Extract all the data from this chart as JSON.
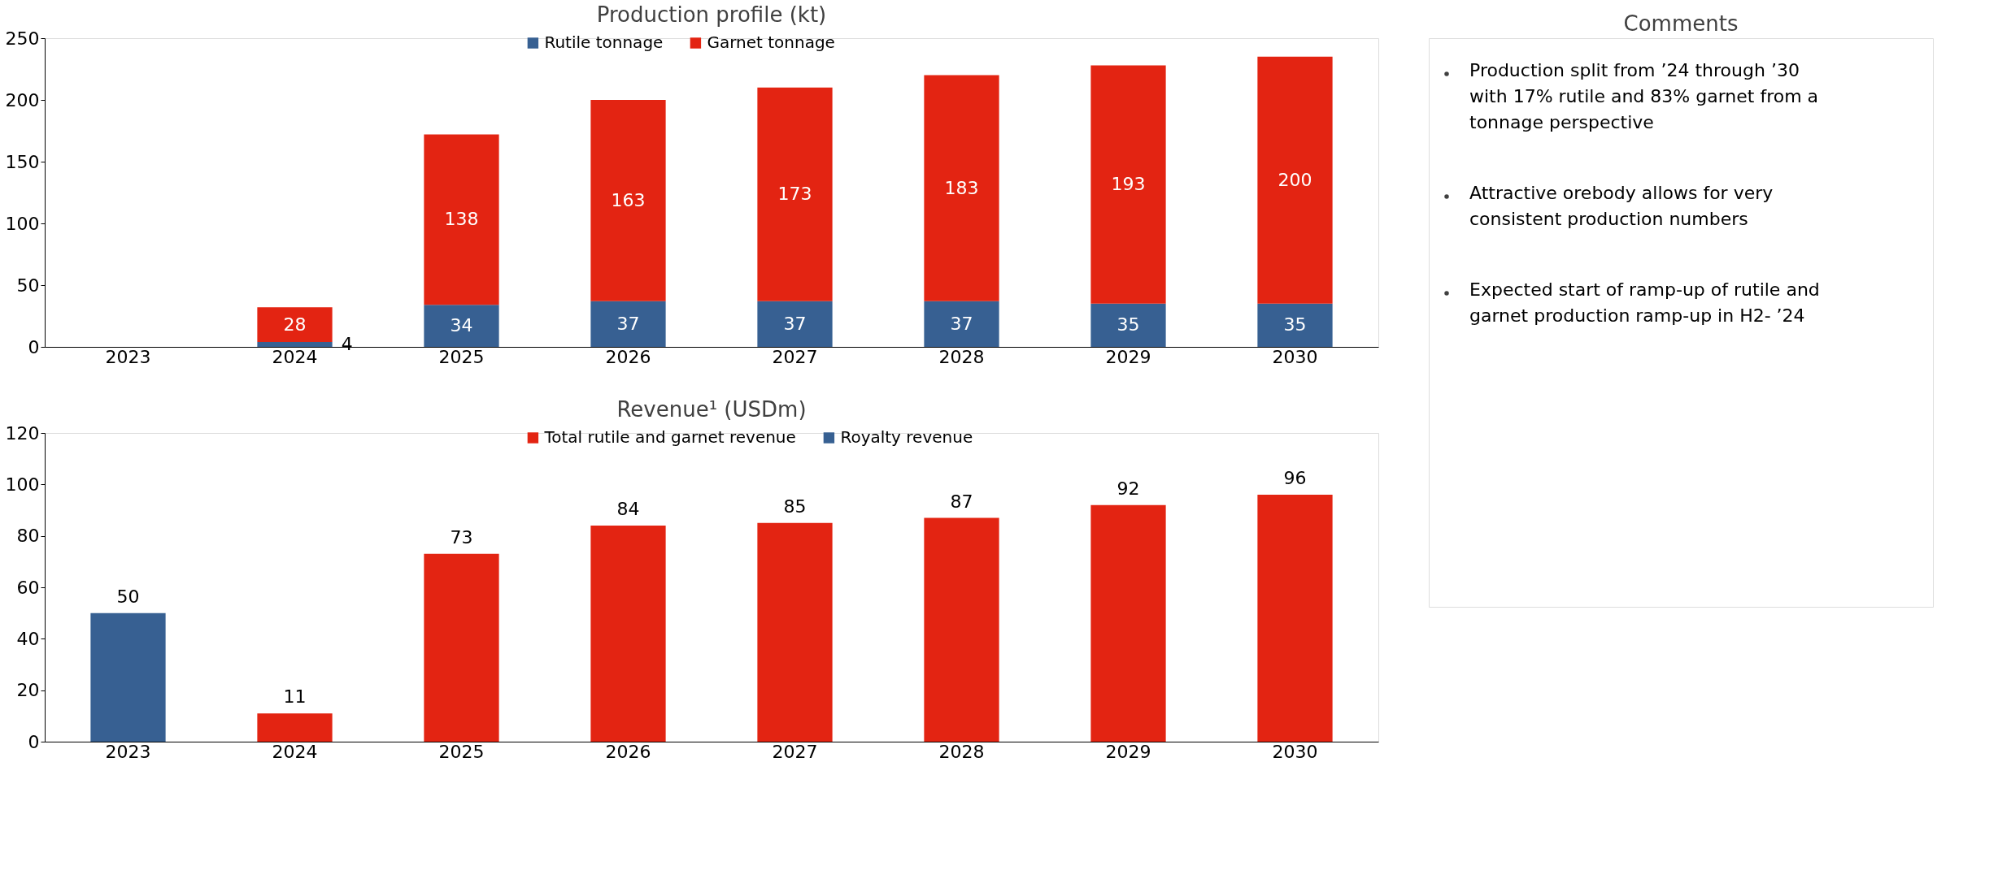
{
  "chart_data": [
    {
      "type": "bar",
      "title": "Production profile (kt)",
      "categories": [
        "2023",
        "2024",
        "2025",
        "2026",
        "2027",
        "2028",
        "2029",
        "2030"
      ],
      "stacked": true,
      "data_labels": true,
      "legend": "top",
      "grid": false,
      "ylim": [
        0,
        250
      ],
      "yticks": [
        0,
        50,
        100,
        150,
        200,
        250
      ],
      "series": [
        {
          "name": "Rutile tonnage",
          "color": "#376092",
          "values": [
            null,
            4,
            34,
            37,
            37,
            37,
            35,
            35
          ]
        },
        {
          "name": "Garnet tonnage",
          "color": "#e32412",
          "values": [
            null,
            28,
            138,
            163,
            173,
            183,
            193,
            200
          ]
        }
      ]
    },
    {
      "type": "bar",
      "title": "Revenue¹ (USDm)",
      "categories": [
        "2023",
        "2024",
        "2025",
        "2026",
        "2027",
        "2028",
        "2029",
        "2030"
      ],
      "data_labels": true,
      "legend": "top",
      "grid": false,
      "ylim": [
        0,
        120
      ],
      "yticks": [
        0,
        20,
        40,
        60,
        80,
        100,
        120
      ],
      "series": [
        {
          "name": "Total rutile and garnet revenue",
          "color": "#e32412",
          "values": [
            null,
            11,
            73,
            84,
            85,
            87,
            92,
            96
          ]
        },
        {
          "name": "Royalty revenue",
          "color": "#376092",
          "values": [
            50,
            null,
            null,
            null,
            null,
            null,
            null,
            null
          ]
        }
      ]
    },
    {
      "type": "other",
      "title": "Comments",
      "annotations": [
        "Production split from ’24 through ’30 with 17% rutile and 83% garnet from a tonnage perspective",
        "Attractive orebody allows for very consistent production numbers",
        "Expected start of ramp-up of rutile and garnet production ramp-up in H2- ’24"
      ]
    }
  ]
}
